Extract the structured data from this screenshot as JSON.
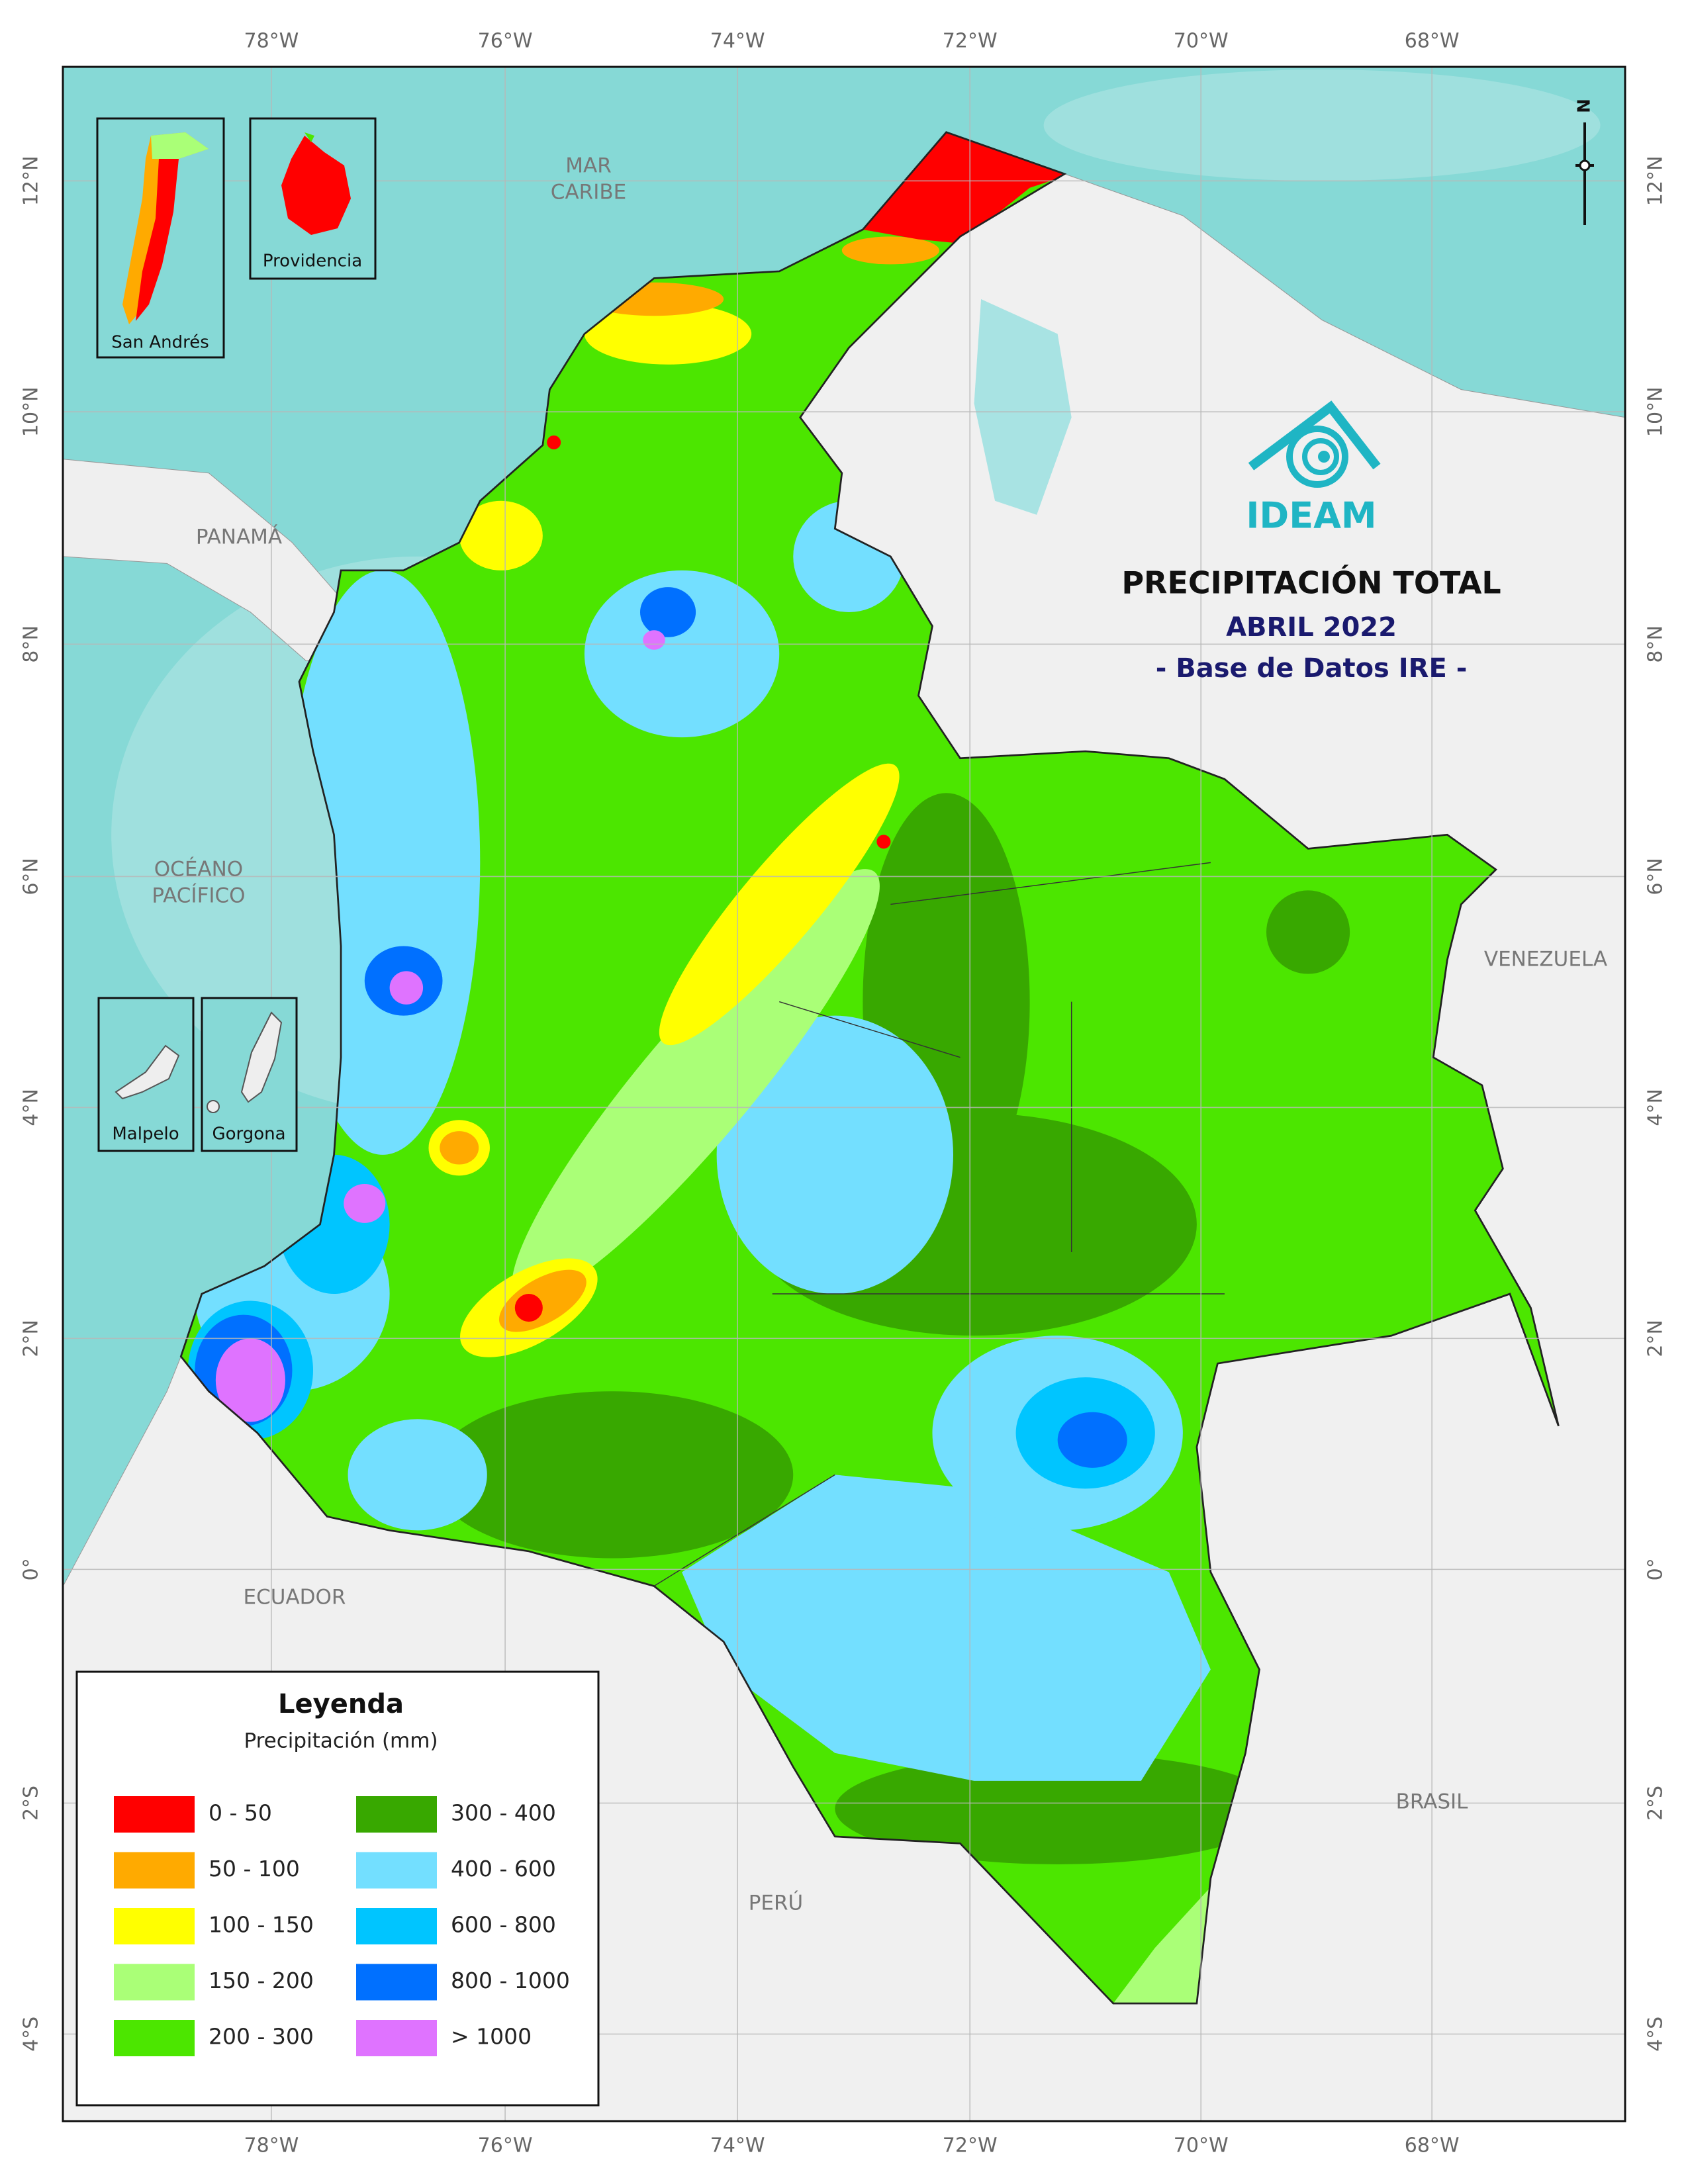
{
  "map": {
    "title": "PRECIPITACIÓN TOTAL",
    "subtitle": "ABRIL 2022",
    "source": "- Base de Datos IRE -",
    "logo": "IDEAM",
    "north": "N",
    "longitudes": [
      "78°W",
      "76°W",
      "74°W",
      "72°W",
      "70°W",
      "68°W"
    ],
    "latitudes": [
      "12°N",
      "10°N",
      "8°N",
      "6°N",
      "4°N",
      "2°N",
      "0°",
      "2°S",
      "4°S"
    ],
    "places": [
      {
        "lines": [
          "MAR",
          "CARIBE"
        ]
      },
      {
        "lines": [
          "PANAMÁ"
        ]
      },
      {
        "lines": [
          "OCÉANO",
          "PACÍFICO"
        ]
      },
      {
        "lines": [
          "VENEZUELA"
        ]
      },
      {
        "lines": [
          "ECUADOR"
        ]
      },
      {
        "lines": [
          "BRASIL"
        ]
      },
      {
        "lines": [
          "PERÚ"
        ]
      }
    ],
    "insets": [
      "San Andrés",
      "Providencia",
      "Malpelo",
      "Gorgona"
    ],
    "legend": {
      "title": "Leyenda",
      "subtitle": "Precipitación (mm)",
      "items": [
        {
          "label": "0 - 50",
          "color": "#ff0000"
        },
        {
          "label": "50 - 100",
          "color": "#ffaa00"
        },
        {
          "label": "100 - 150",
          "color": "#ffff00"
        },
        {
          "label": "150 - 200",
          "color": "#aaff77"
        },
        {
          "label": "200 - 300",
          "color": "#4ce600"
        },
        {
          "label": "300 - 400",
          "color": "#38a800"
        },
        {
          "label": "400 - 600",
          "color": "#73dfff"
        },
        {
          "label": "600 - 800",
          "color": "#00c5ff"
        },
        {
          "label": "800 - 1000",
          "color": "#0070ff"
        },
        {
          "label": "> 1000",
          "color": "#df73ff"
        }
      ]
    }
  }
}
